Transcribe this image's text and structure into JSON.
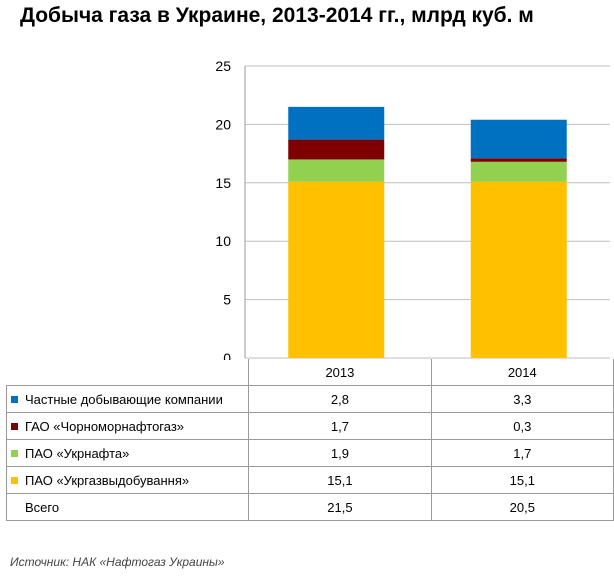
{
  "title": "Добыча газа в Украине, 2013-2014 гг.,  млрд куб. м",
  "source": "Источник: НАК «Нафтогаз Украины»",
  "chart_data": {
    "type": "bar",
    "stacked": true,
    "categories": [
      "2013",
      "2014"
    ],
    "series": [
      {
        "name": "ПАО «Укргазвыдобування»",
        "color": "#ffc000",
        "values": [
          15.1,
          15.1
        ],
        "labels": [
          "15,1",
          "15,1"
        ]
      },
      {
        "name": "ПАО «Укрнафта»",
        "color": "#92d050",
        "values": [
          1.9,
          1.7
        ],
        "labels": [
          "1,9",
          "1,7"
        ]
      },
      {
        "name": "ГАО «Чорноморнафтогаз»",
        "color": "#7f0000",
        "values": [
          1.7,
          0.3
        ],
        "labels": [
          "1,7",
          "0,3"
        ]
      },
      {
        "name": "Частные добывающие компании",
        "color": "#0070c0",
        "values": [
          2.8,
          3.3
        ],
        "labels": [
          "2,8",
          "3,3"
        ]
      }
    ],
    "total": {
      "name": "Всего",
      "values": [
        21.5,
        20.5
      ],
      "labels": [
        "21,5",
        "20,5"
      ]
    },
    "ylim": [
      0,
      25
    ],
    "yticks": [
      0,
      5,
      10,
      15,
      20,
      25
    ],
    "grid": true,
    "legend": "data table below chart"
  }
}
